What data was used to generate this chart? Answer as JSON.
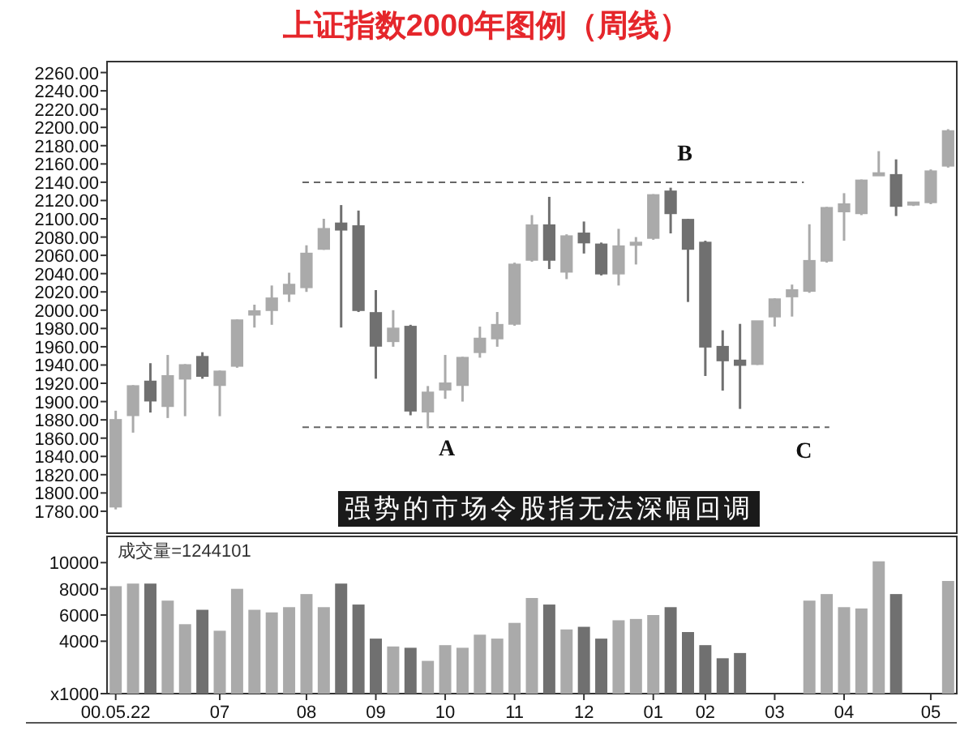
{
  "chart_data": [
    {
      "type": "candlestick",
      "title": "上证指数2000年图例（周线）",
      "categories": [
        null,
        null,
        null,
        null,
        null,
        null,
        null,
        null,
        null,
        null,
        null,
        null,
        null,
        null,
        null,
        null,
        null,
        null,
        null,
        null,
        null,
        null,
        null,
        null,
        null,
        null,
        null,
        null,
        null,
        null,
        null,
        null,
        null,
        null,
        null,
        null,
        null,
        null,
        null,
        null,
        null,
        null,
        null,
        null,
        null,
        null,
        null,
        null,
        null
      ],
      "ohlc": [
        [
          1785,
          1890,
          1782,
          1880
        ],
        [
          1885,
          1918,
          1866,
          1917
        ],
        [
          1922,
          1942,
          1888,
          1901
        ],
        [
          1895,
          1951,
          1882,
          1928
        ],
        [
          1925,
          1941,
          1884,
          1940
        ],
        [
          1949,
          1954,
          1925,
          1928
        ],
        [
          1918,
          1934,
          1884,
          1933
        ],
        [
          1939,
          1990,
          1937,
          1989
        ],
        [
          1995,
          2006,
          1981,
          1999
        ],
        [
          2000,
          2027,
          1984,
          2013
        ],
        [
          2018,
          2041,
          2009,
          2028
        ],
        [
          2025,
          2071,
          2020,
          2062
        ],
        [
          2067,
          2100,
          2066,
          2089
        ],
        [
          2095,
          2115,
          1981,
          2088
        ],
        [
          2092,
          2109,
          1998,
          2000
        ],
        [
          1997,
          2022,
          1925,
          1961
        ],
        [
          1966,
          2000,
          1960,
          1980
        ],
        [
          1982,
          1984,
          1885,
          1890
        ],
        [
          1889,
          1917,
          1871,
          1910
        ],
        [
          1913,
          1951,
          1903,
          1920
        ],
        [
          1918,
          1949,
          1900,
          1948
        ],
        [
          1954,
          1982,
          1948,
          1969
        ],
        [
          1969,
          1998,
          1960,
          1984
        ],
        [
          1985,
          2052,
          1983,
          2050
        ],
        [
          2055,
          2104,
          2053,
          2093
        ],
        [
          2093,
          2124,
          2045,
          2055
        ],
        [
          2042,
          2083,
          2034,
          2081
        ],
        [
          2084,
          2097,
          2062,
          2074
        ],
        [
          2072,
          2074,
          2038,
          2040
        ],
        [
          2040,
          2089,
          2027,
          2070
        ],
        [
          2072,
          2080,
          2050,
          2074
        ],
        [
          2079,
          2127,
          2077,
          2126
        ],
        [
          2130,
          2134,
          2084,
          2106
        ],
        [
          2099,
          2100,
          2009,
          2067
        ],
        [
          2074,
          2076,
          1928,
          1960
        ],
        [
          1960,
          1978,
          1912,
          1945
        ],
        [
          1945,
          1985,
          1892,
          1940
        ],
        [
          1941,
          1988,
          1940,
          1988
        ],
        [
          1993,
          2013,
          1982,
          2012
        ],
        [
          2015,
          2028,
          1993,
          2022
        ],
        [
          2021,
          2094,
          2019,
          2054
        ],
        [
          2054,
          2113,
          2052,
          2112
        ],
        [
          2108,
          2128,
          2076,
          2116
        ],
        [
          2106,
          2143,
          2104,
          2142
        ],
        [
          2148,
          2174,
          2147,
          2150
        ],
        [
          2148,
          2165,
          2103,
          2114
        ],
        [
          2116,
          2118,
          2114,
          2118
        ],
        [
          2118,
          2154,
          2116,
          2152
        ],
        [
          2158,
          2198,
          2156,
          2196
        ]
      ],
      "colors": [
        "#aaaaaa",
        "#aaaaaa",
        "#707070",
        "#aaaaaa",
        "#aaaaaa",
        "#707070",
        "#aaaaaa",
        "#aaaaaa",
        "#aaaaaa",
        "#aaaaaa",
        "#aaaaaa",
        "#aaaaaa",
        "#aaaaaa",
        "#707070",
        "#707070",
        "#707070",
        "#aaaaaa",
        "#707070",
        "#aaaaaa",
        "#aaaaaa",
        "#aaaaaa",
        "#aaaaaa",
        "#aaaaaa",
        "#aaaaaa",
        "#aaaaaa",
        "#707070",
        "#aaaaaa",
        "#707070",
        "#707070",
        "#aaaaaa",
        "#aaaaaa",
        "#aaaaaa",
        "#707070",
        "#707070",
        "#707070",
        "#707070",
        "#707070",
        "#aaaaaa",
        "#aaaaaa",
        "#aaaaaa",
        "#aaaaaa",
        "#aaaaaa",
        "#aaaaaa",
        "#aaaaaa",
        "#aaaaaa",
        "#707070",
        "#aaaaaa",
        "#aaaaaa",
        "#aaaaaa"
      ],
      "ylim": [
        1756,
        2272
      ],
      "yticks": [
        {
          "value": 1780,
          "label": "1780.00"
        },
        {
          "value": 1800,
          "label": "1800.00"
        },
        {
          "value": 1820,
          "label": "1820.00"
        },
        {
          "value": 1840,
          "label": "1840.00"
        },
        {
          "value": 1860,
          "label": "1860.00"
        },
        {
          "value": 1880,
          "label": "1880.00"
        },
        {
          "value": 1900,
          "label": "1900.00"
        },
        {
          "value": 1920,
          "label": "1920.00"
        },
        {
          "value": 1940,
          "label": "1940.00"
        },
        {
          "value": 1960,
          "label": "1960.00"
        },
        {
          "value": 1980,
          "label": "1980.00"
        },
        {
          "value": 2000,
          "label": "2000.00"
        },
        {
          "value": 2020,
          "label": "2020.00"
        },
        {
          "value": 2040,
          "label": "2040.00"
        },
        {
          "value": 2060,
          "label": "2060.00"
        },
        {
          "value": 2080,
          "label": "2080.00"
        },
        {
          "value": 2100,
          "label": "2100.00"
        },
        {
          "value": 2120,
          "label": "2120.00"
        },
        {
          "value": 2140,
          "label": "2140.00"
        },
        {
          "value": 2160,
          "label": "2160.00"
        },
        {
          "value": 2180,
          "label": "2180.00"
        },
        {
          "value": 2200,
          "label": "2200.00"
        },
        {
          "value": 2220,
          "label": "2220.00"
        },
        {
          "value": 2240,
          "label": "2240.00"
        },
        {
          "value": 2260,
          "label": "2260.00"
        }
      ],
      "tick_labels": "y",
      "ref_lines": [
        {
          "axis": "y",
          "value": 2140,
          "color": "#666666",
          "line_style": "dashed"
        },
        {
          "axis": "y",
          "value": 1872,
          "color": "#666666",
          "line_style": "dashed"
        }
      ],
      "annotations": [
        "A",
        "B",
        "C",
        "强势的市场令股指无法深幅回调"
      ]
    },
    {
      "type": "bar",
      "categories": [
        "00.05.22",
        null,
        null,
        null,
        null,
        null,
        "07",
        null,
        null,
        null,
        null,
        "08",
        null,
        null,
        null,
        "09",
        null,
        null,
        null,
        "10",
        null,
        null,
        null,
        "11",
        null,
        null,
        null,
        "12",
        null,
        null,
        null,
        "01",
        null,
        null,
        "02",
        null,
        null,
        null,
        "03",
        null,
        null,
        null,
        "04",
        null,
        null,
        null,
        null,
        "05",
        null
      ],
      "values": [
        8200,
        8400,
        8400,
        7100,
        5300,
        6400,
        4800,
        8000,
        6400,
        6200,
        6600,
        7600,
        6600,
        8400,
        6800,
        4200,
        3600,
        3500,
        2500,
        3700,
        3500,
        4500,
        4200,
        5400,
        7300,
        6800,
        4900,
        5100,
        4200,
        5600,
        5700,
        6000,
        6600,
        4700,
        3700,
        2700,
        3100,
        null,
        null,
        null,
        7100,
        7600,
        6600,
        6500,
        10100,
        7600,
        null,
        null,
        8600
      ],
      "colors": [
        "#aaaaaa",
        "#aaaaaa",
        "#707070",
        "#aaaaaa",
        "#aaaaaa",
        "#707070",
        "#aaaaaa",
        "#aaaaaa",
        "#aaaaaa",
        "#aaaaaa",
        "#aaaaaa",
        "#aaaaaa",
        "#aaaaaa",
        "#707070",
        "#707070",
        "#707070",
        "#aaaaaa",
        "#707070",
        "#aaaaaa",
        "#aaaaaa",
        "#aaaaaa",
        "#aaaaaa",
        "#aaaaaa",
        "#aaaaaa",
        "#aaaaaa",
        "#707070",
        "#aaaaaa",
        "#707070",
        "#707070",
        "#aaaaaa",
        "#aaaaaa",
        "#aaaaaa",
        "#707070",
        "#707070",
        "#707070",
        "#707070",
        "#707070",
        null,
        null,
        null,
        "#aaaaaa",
        "#aaaaaa",
        "#aaaaaa",
        "#aaaaaa",
        "#aaaaaa",
        "#707070",
        null,
        null,
        "#aaaaaa"
      ],
      "ylim": [
        0,
        12000
      ],
      "yticks": [
        {
          "value": 0,
          "label": "x1000"
        },
        4000,
        6000,
        8000,
        10000
      ],
      "annotations": [
        "成交量=1244101"
      ]
    }
  ]
}
